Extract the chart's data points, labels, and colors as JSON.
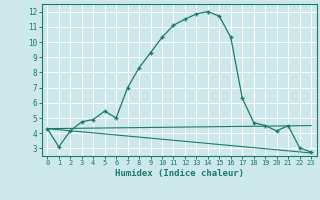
{
  "xlabel": "Humidex (Indice chaleur)",
  "ylabel": "",
  "background_color": "#cde8ea",
  "grid_color": "#ffffff",
  "line_color": "#1a7a6e",
  "xlim": [
    -0.5,
    23.5
  ],
  "ylim": [
    2.5,
    12.5
  ],
  "yticks": [
    3,
    4,
    5,
    6,
    7,
    8,
    9,
    10,
    11,
    12
  ],
  "xticks": [
    0,
    1,
    2,
    3,
    4,
    5,
    6,
    7,
    8,
    9,
    10,
    11,
    12,
    13,
    14,
    15,
    16,
    17,
    18,
    19,
    20,
    21,
    22,
    23
  ],
  "curve1_x": [
    0,
    1,
    2,
    3,
    4,
    5,
    6,
    7,
    8,
    9,
    10,
    11,
    12,
    13,
    14,
    15,
    16,
    17,
    18,
    19,
    20,
    21,
    22,
    23
  ],
  "curve1_y": [
    4.3,
    3.1,
    4.15,
    4.75,
    4.9,
    5.45,
    5.0,
    7.0,
    8.3,
    9.3,
    10.3,
    11.1,
    11.5,
    11.85,
    12.0,
    11.7,
    10.3,
    6.3,
    4.7,
    4.5,
    4.15,
    4.5,
    3.05,
    2.75
  ],
  "curve2_x": [
    0,
    23
  ],
  "curve2_y": [
    4.3,
    2.7
  ],
  "curve3_x": [
    0,
    23
  ],
  "curve3_y": [
    4.3,
    4.5
  ]
}
